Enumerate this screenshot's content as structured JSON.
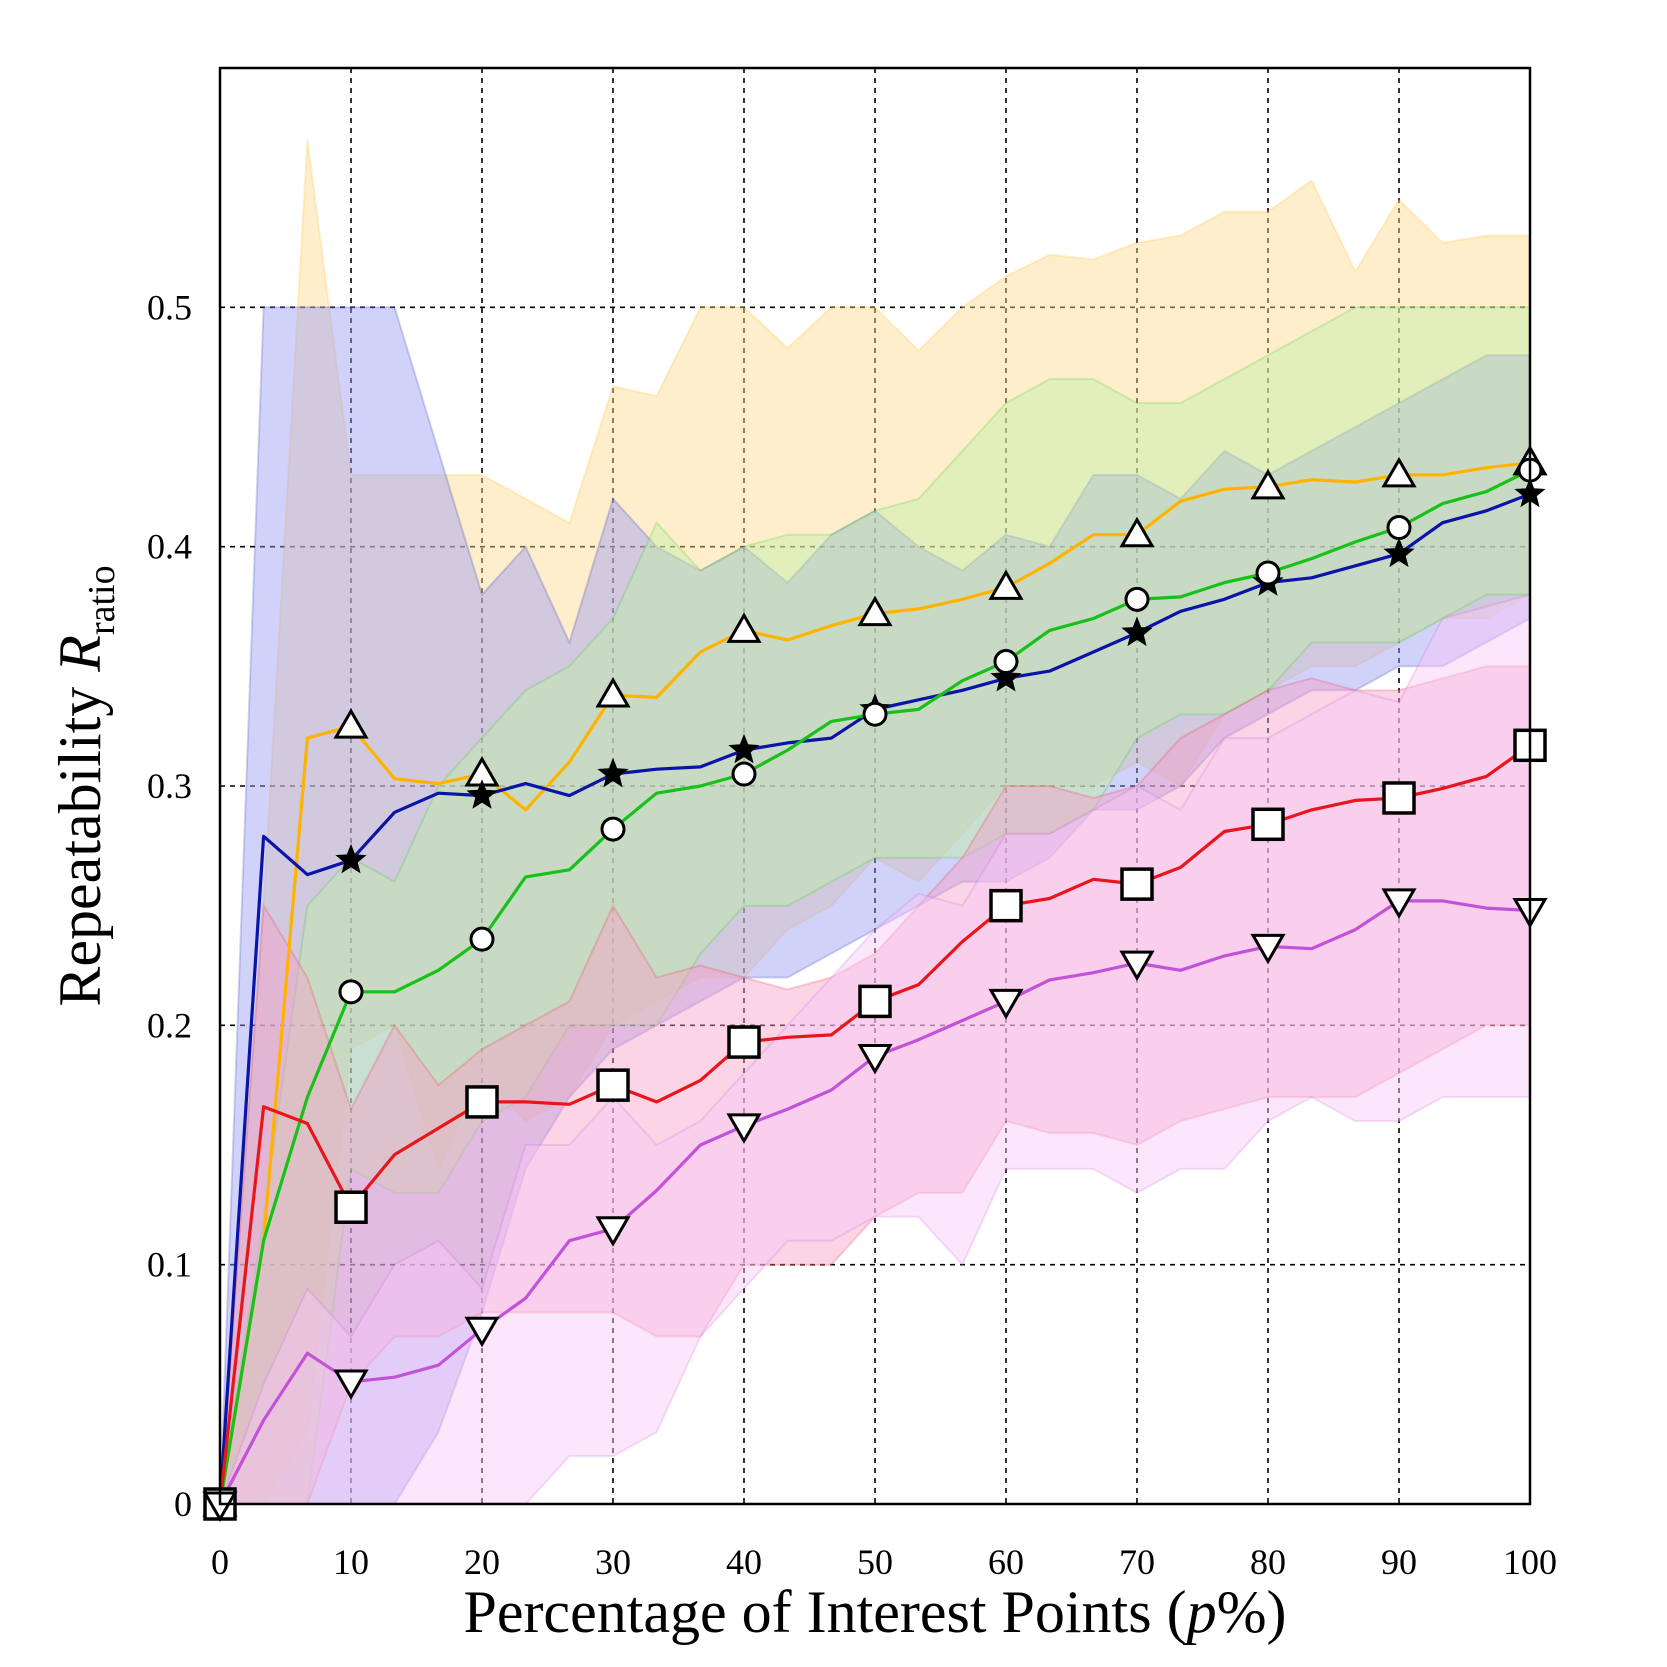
{
  "chart_data": {
    "type": "line",
    "xlabel": "Percentage of Interest Points (",
    "xlabel_italic": "p",
    "xlabel_tail": "%)",
    "ylabel": "Repeatability ",
    "ylabel_symbol": "R",
    "ylabel_subscript": "ratio",
    "xlim": [
      0,
      100
    ],
    "ylim": [
      0,
      0.6
    ],
    "xticks": [
      0,
      10,
      20,
      30,
      40,
      50,
      60,
      70,
      80,
      90,
      100
    ],
    "xtick_labels": [
      "0",
      "10",
      "20",
      "30",
      "40",
      "50",
      "60",
      "70",
      "80",
      "90",
      "100"
    ],
    "yticks": [
      0,
      0.1,
      0.2,
      0.3,
      0.4,
      0.5
    ],
    "ytick_labels": [
      "0",
      "0.1",
      "0.2",
      "0.3",
      "0.4",
      "0.5"
    ],
    "grid": true,
    "legend": "none",
    "x": [
      0,
      3.33,
      6.67,
      10,
      13.33,
      16.67,
      20,
      23.33,
      26.67,
      30,
      33.33,
      36.67,
      40,
      43.33,
      46.67,
      50,
      53.33,
      56.67,
      60,
      63.33,
      66.67,
      70,
      73.33,
      76.67,
      80,
      83.33,
      86.67,
      90,
      93.33,
      96.67,
      100
    ],
    "marker_x": [
      0,
      10,
      20,
      30,
      40,
      50,
      60,
      70,
      80,
      90,
      100
    ],
    "series": [
      {
        "color": "#ffb300",
        "band_color": "#ffd98c",
        "marker": "triangle-up",
        "values": [
          0.0,
          0.11,
          0.32,
          0.325,
          0.303,
          0.301,
          0.305,
          0.29,
          0.31,
          0.338,
          0.337,
          0.356,
          0.365,
          0.361,
          0.367,
          0.372,
          0.374,
          0.378,
          0.383,
          0.393,
          0.405,
          0.405,
          0.419,
          0.424,
          0.425,
          0.428,
          0.427,
          0.43,
          0.43,
          0.433,
          0.435
        ],
        "upper": [
          0.0,
          0.25,
          0.57,
          0.43,
          0.43,
          0.43,
          0.43,
          0.42,
          0.41,
          0.467,
          0.463,
          0.5,
          0.5,
          0.483,
          0.5,
          0.5,
          0.482,
          0.5,
          0.513,
          0.522,
          0.52,
          0.527,
          0.53,
          0.54,
          0.54,
          0.553,
          0.515,
          0.545,
          0.527,
          0.53,
          0.53
        ],
        "lower": [
          0.0,
          0.0,
          0.03,
          0.19,
          0.2,
          0.14,
          0.18,
          0.16,
          0.17,
          0.2,
          0.21,
          0.22,
          0.22,
          0.24,
          0.25,
          0.27,
          0.26,
          0.28,
          0.3,
          0.3,
          0.3,
          0.31,
          0.3,
          0.33,
          0.34,
          0.35,
          0.35,
          0.36,
          0.37,
          0.37,
          0.38
        ]
      },
      {
        "color": "#0a14a8",
        "band_color": "#9a9cf5",
        "marker": "star",
        "values": [
          0.0,
          0.279,
          0.263,
          0.269,
          0.289,
          0.297,
          0.296,
          0.301,
          0.296,
          0.305,
          0.307,
          0.308,
          0.315,
          0.318,
          0.32,
          0.332,
          0.336,
          0.34,
          0.345,
          0.348,
          0.356,
          0.364,
          0.373,
          0.378,
          0.385,
          0.387,
          0.392,
          0.397,
          0.41,
          0.415,
          0.422
        ],
        "upper": [
          0.0,
          0.5,
          0.5,
          0.5,
          0.5,
          0.44,
          0.38,
          0.4,
          0.36,
          0.42,
          0.4,
          0.39,
          0.4,
          0.385,
          0.405,
          0.415,
          0.4,
          0.39,
          0.405,
          0.4,
          0.43,
          0.43,
          0.42,
          0.44,
          0.43,
          0.44,
          0.45,
          0.46,
          0.47,
          0.48,
          0.48
        ],
        "lower": [
          0.0,
          0.0,
          0.0,
          0.0,
          0.0,
          0.03,
          0.08,
          0.14,
          0.17,
          0.19,
          0.2,
          0.21,
          0.22,
          0.22,
          0.23,
          0.24,
          0.25,
          0.26,
          0.26,
          0.27,
          0.29,
          0.29,
          0.3,
          0.32,
          0.33,
          0.34,
          0.34,
          0.35,
          0.35,
          0.36,
          0.37
        ]
      },
      {
        "color": "#17c117",
        "band_color": "#bff0a6",
        "marker": "circle",
        "values": [
          0.0,
          0.11,
          0.17,
          0.214,
          0.214,
          0.223,
          0.236,
          0.262,
          0.265,
          0.282,
          0.297,
          0.3,
          0.305,
          0.315,
          0.327,
          0.33,
          0.332,
          0.344,
          0.352,
          0.365,
          0.37,
          0.378,
          0.379,
          0.385,
          0.389,
          0.395,
          0.402,
          0.408,
          0.418,
          0.423,
          0.432
        ],
        "upper": [
          0.0,
          0.12,
          0.25,
          0.27,
          0.26,
          0.3,
          0.32,
          0.34,
          0.35,
          0.37,
          0.41,
          0.39,
          0.4,
          0.405,
          0.405,
          0.415,
          0.42,
          0.44,
          0.46,
          0.47,
          0.47,
          0.46,
          0.46,
          0.47,
          0.48,
          0.49,
          0.5,
          0.5,
          0.5,
          0.5,
          0.5
        ],
        "lower": [
          0.0,
          0.0,
          0.0,
          0.14,
          0.13,
          0.13,
          0.16,
          0.17,
          0.2,
          0.2,
          0.2,
          0.23,
          0.25,
          0.25,
          0.26,
          0.27,
          0.27,
          0.27,
          0.28,
          0.28,
          0.29,
          0.32,
          0.33,
          0.33,
          0.34,
          0.36,
          0.36,
          0.36,
          0.37,
          0.38,
          0.38
        ]
      },
      {
        "color": "#e8151b",
        "band_color": "#f7a0c8",
        "marker": "square",
        "values": [
          0.0,
          0.166,
          0.159,
          0.124,
          0.146,
          0.157,
          0.168,
          0.168,
          0.167,
          0.175,
          0.168,
          0.177,
          0.193,
          0.195,
          0.196,
          0.21,
          0.217,
          0.235,
          0.25,
          0.253,
          0.261,
          0.259,
          0.266,
          0.281,
          0.284,
          0.29,
          0.294,
          0.295,
          0.299,
          0.304,
          0.317
        ],
        "upper": [
          0.0,
          0.25,
          0.22,
          0.165,
          0.2,
          0.175,
          0.19,
          0.2,
          0.21,
          0.25,
          0.22,
          0.225,
          0.22,
          0.215,
          0.22,
          0.23,
          0.25,
          0.27,
          0.3,
          0.3,
          0.295,
          0.3,
          0.32,
          0.33,
          0.34,
          0.345,
          0.34,
          0.34,
          0.345,
          0.35,
          0.35
        ],
        "lower": [
          0.0,
          0.0,
          0.0,
          0.05,
          0.07,
          0.07,
          0.08,
          0.08,
          0.08,
          0.08,
          0.07,
          0.07,
          0.1,
          0.1,
          0.1,
          0.12,
          0.13,
          0.13,
          0.16,
          0.155,
          0.155,
          0.15,
          0.16,
          0.165,
          0.17,
          0.17,
          0.17,
          0.18,
          0.19,
          0.2,
          0.2
        ]
      },
      {
        "color": "#c252d8",
        "band_color": "#f8c8f7",
        "marker": "triangle-down",
        "values": [
          0.0,
          0.035,
          0.063,
          0.051,
          0.053,
          0.058,
          0.073,
          0.086,
          0.11,
          0.115,
          0.131,
          0.15,
          0.158,
          0.165,
          0.173,
          0.187,
          0.194,
          0.202,
          0.21,
          0.219,
          0.222,
          0.226,
          0.223,
          0.229,
          0.233,
          0.232,
          0.24,
          0.252,
          0.252,
          0.249,
          0.248
        ],
        "upper": [
          0.0,
          0.05,
          0.09,
          0.07,
          0.1,
          0.11,
          0.09,
          0.15,
          0.15,
          0.17,
          0.15,
          0.16,
          0.18,
          0.2,
          0.22,
          0.24,
          0.255,
          0.25,
          0.28,
          0.28,
          0.29,
          0.3,
          0.29,
          0.32,
          0.32,
          0.33,
          0.34,
          0.335,
          0.37,
          0.375,
          0.38
        ],
        "lower": [
          0.0,
          0.0,
          0.0,
          0.0,
          0.0,
          0.0,
          0.0,
          0.0,
          0.02,
          0.02,
          0.03,
          0.07,
          0.09,
          0.11,
          0.11,
          0.12,
          0.12,
          0.1,
          0.14,
          0.14,
          0.14,
          0.13,
          0.14,
          0.14,
          0.16,
          0.17,
          0.16,
          0.16,
          0.17,
          0.17,
          0.17
        ]
      }
    ]
  }
}
